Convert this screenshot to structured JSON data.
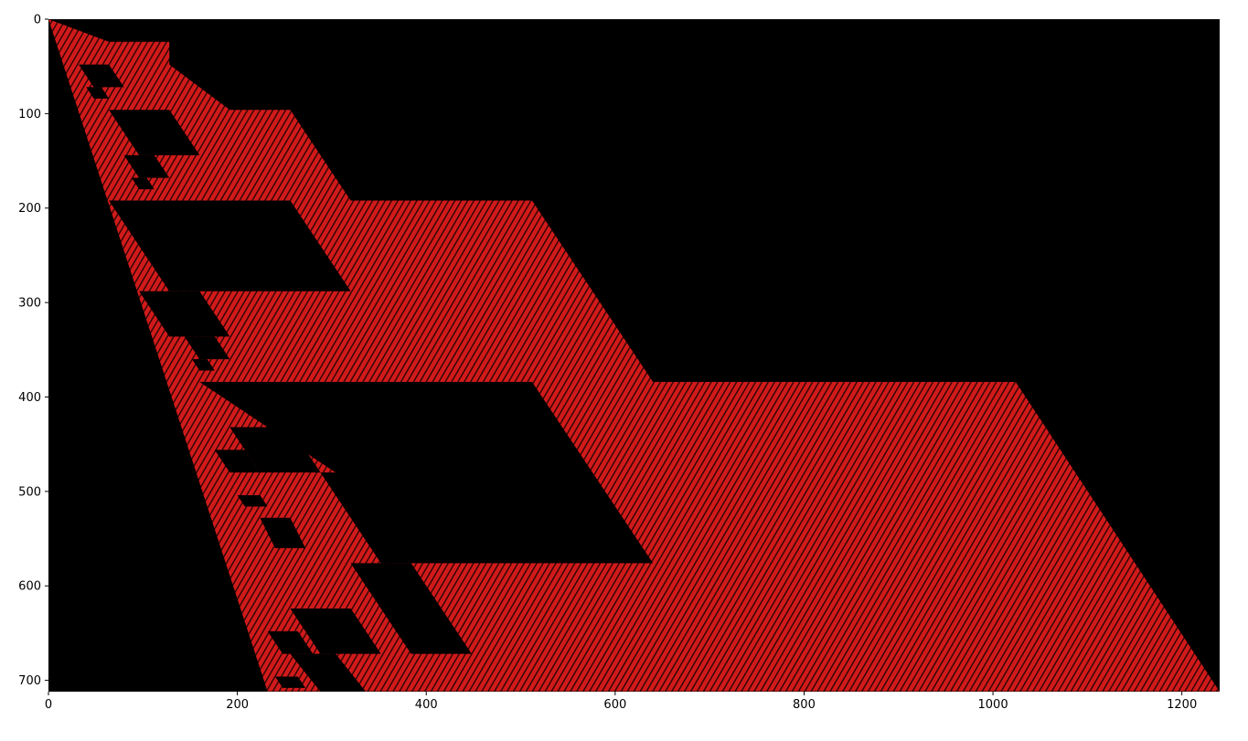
{
  "chart_data": {
    "type": "heatmap",
    "title": "",
    "xlabel": "",
    "ylabel": "",
    "xlim": [
      0,
      1240
    ],
    "ylim": [
      712,
      0
    ],
    "y_axis_inverted": true,
    "x_ticks": [
      0,
      200,
      400,
      600,
      800,
      1000,
      1200
    ],
    "y_ticks": [
      0,
      100,
      200,
      300,
      400,
      500,
      600,
      700
    ],
    "colors": {
      "background": "#000000",
      "active": "#d11a1a",
      "stripe": "#2a0404"
    },
    "stripe_slope": 2,
    "boundaries": {
      "left_edge": [
        [
          0,
          0
        ],
        [
          232,
          712
        ]
      ],
      "right_edge": [
        [
          0,
          0
        ],
        [
          64,
          48
        ],
        [
          96,
          96
        ],
        [
          128,
          128
        ],
        [
          256,
          256
        ],
        [
          320,
          320
        ],
        [
          512,
          512
        ],
        [
          640,
          640
        ],
        [
          1024,
          1024
        ],
        [
          1240,
          1240
        ]
      ],
      "right_edge_rows": [
        0,
        24,
        48,
        96,
        192,
        384,
        712
      ]
    },
    "black_regions": [
      {
        "x": [
          64,
          256
        ],
        "y": [
          192,
          288
        ]
      },
      {
        "x": [
          128,
          192
        ],
        "y": [
          96,
          144
        ]
      },
      {
        "x": [
          512,
          640
        ],
        "y": [
          384,
          576
        ]
      },
      {
        "x": [
          320,
          448
        ],
        "y": [
          576,
          672
        ]
      },
      {
        "x": [
          96,
          128
        ],
        "y": [
          48,
          72
        ]
      },
      {
        "x": [
          192,
          256
        ],
        "y": [
          480,
          528
        ]
      },
      {
        "x": [
          288,
          384
        ],
        "y": [
          624,
          672
        ]
      },
      {
        "x": [
          96,
          192
        ],
        "y": [
          288,
          336
        ]
      }
    ]
  }
}
